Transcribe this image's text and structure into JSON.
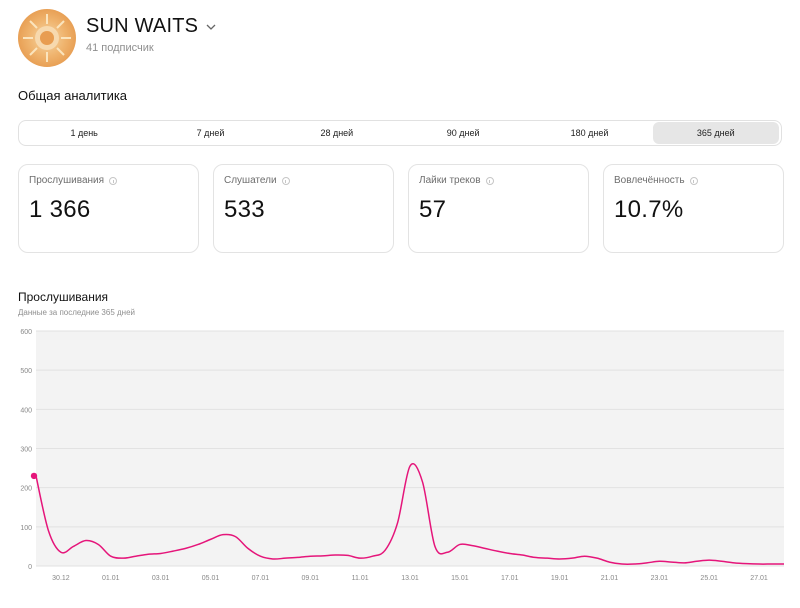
{
  "header": {
    "artist_name": "SUN WAITS",
    "subscribers": "41 подписчик"
  },
  "analytics": {
    "title": "Общая аналитика",
    "periods": [
      "1 день",
      "7 дней",
      "28 дней",
      "90 дней",
      "180 дней",
      "365 дней"
    ],
    "selected_period": "365 дней"
  },
  "metrics": [
    {
      "label": "Прослушивания",
      "value": "1 366"
    },
    {
      "label": "Слушатели",
      "value": "533"
    },
    {
      "label": "Лайки треков",
      "value": "57"
    },
    {
      "label": "Вовлечённость",
      "value": "10.7%"
    }
  ],
  "chart": {
    "title": "Прослушивания",
    "subtitle": "Данные за последние 365 дней"
  },
  "chart_data": {
    "type": "line",
    "title": "Прослушивания",
    "subtitle": "Данные за последние 365 дней",
    "ylim": [
      0,
      600
    ],
    "yticks": [
      0,
      100,
      200,
      300,
      400,
      500,
      600
    ],
    "ytick_labels": [
      "0",
      "100",
      "200",
      "300",
      "400",
      "500",
      "600"
    ],
    "xtick_labels": [
      "30.12",
      "01.01",
      "03.01",
      "05.01",
      "07.01",
      "09.01",
      "11.01",
      "13.01",
      "15.01",
      "17.01",
      "19.01",
      "21.01",
      "23.01",
      "25.01",
      "27.01"
    ],
    "xtick_positions": [
      1,
      3,
      5,
      7,
      9,
      11,
      13,
      15,
      17,
      19,
      21,
      23,
      25,
      27,
      29
    ],
    "x": [
      0,
      0.5,
      1,
      1.5,
      2,
      2.5,
      3,
      3.5,
      4,
      4.5,
      5,
      5.5,
      6,
      6.5,
      7,
      7.5,
      8,
      8.5,
      9,
      9.5,
      10,
      10.5,
      11,
      11.5,
      12,
      12.5,
      13,
      13.5,
      14,
      14.5,
      15,
      15.5,
      16,
      16.5,
      17,
      17.5,
      18,
      18.5,
      19,
      19.5,
      20,
      20.5,
      21,
      21.5,
      22,
      22.5,
      23,
      23.5,
      24,
      24.5,
      25,
      25.5,
      26,
      26.5,
      27,
      27.5,
      28,
      28.5,
      29,
      29.5,
      30
    ],
    "series": [
      {
        "color": "#e5157a",
        "values": [
          230,
          90,
          35,
          50,
          65,
          55,
          25,
          20,
          25,
          30,
          32,
          38,
          45,
          55,
          68,
          80,
          75,
          45,
          25,
          18,
          20,
          22,
          25,
          26,
          28,
          27,
          20,
          25,
          40,
          110,
          255,
          215,
          50,
          35,
          55,
          52,
          45,
          38,
          32,
          28,
          22,
          20,
          18,
          20,
          25,
          20,
          10,
          5,
          5,
          8,
          12,
          10,
          8,
          12,
          15,
          12,
          8,
          6,
          5,
          5,
          5
        ]
      }
    ],
    "grid": true,
    "highlight_point": {
      "x": 0,
      "y": 230
    }
  }
}
